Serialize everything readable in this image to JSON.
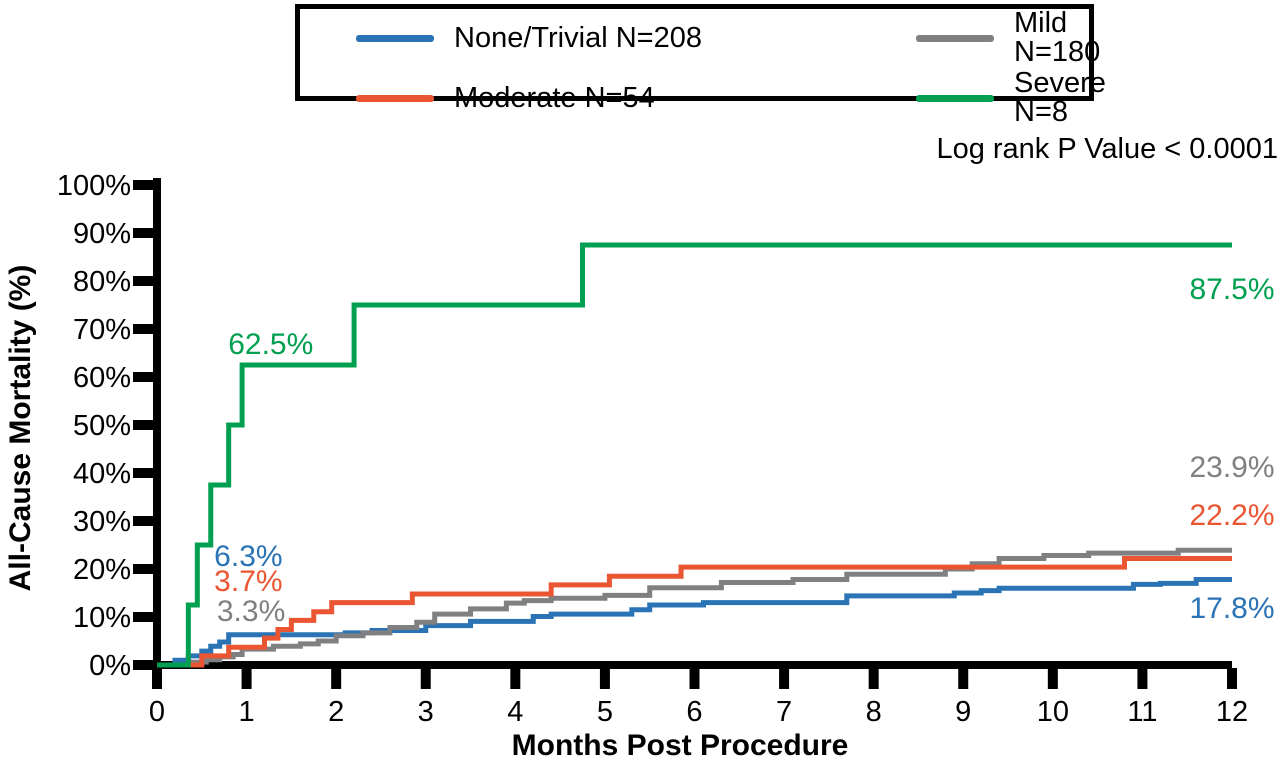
{
  "colors": {
    "blue": "#2A73B5",
    "orange": "#EA5532",
    "gray": "#808083",
    "green": "#00A050",
    "axis": "#000000"
  },
  "stats": {
    "log_rank_label": "Log rank P Value < 0.0001"
  },
  "chart_data": {
    "type": "line",
    "style": "kaplan-meier-step",
    "title": "",
    "xlabel": "Months Post Procedure",
    "ylabel": "All-Cause Mortality (%)",
    "xlim": [
      0,
      12
    ],
    "ylim": [
      0,
      100
    ],
    "x_ticks": [
      0,
      1,
      2,
      3,
      4,
      5,
      6,
      7,
      8,
      9,
      10,
      11,
      12
    ],
    "y_ticks": [
      0,
      10,
      20,
      30,
      40,
      50,
      60,
      70,
      80,
      90,
      100
    ],
    "y_tick_suffix": "%",
    "grid": false,
    "legend_position": "top-center",
    "log_rank_p_value": "< 0.0001",
    "series": [
      {
        "name": "None/Trivial N=208",
        "key": "none-trivial",
        "n": 208,
        "color": "blue",
        "value_at_1_month": 6.3,
        "value_at_12_months": 17.8,
        "points": [
          [
            0,
            0
          ],
          [
            0.2,
            1.0
          ],
          [
            0.35,
            1.9
          ],
          [
            0.5,
            2.9
          ],
          [
            0.6,
            3.9
          ],
          [
            0.7,
            4.8
          ],
          [
            0.8,
            6.3
          ],
          [
            2.1,
            6.7
          ],
          [
            2.4,
            7.2
          ],
          [
            3.0,
            8.2
          ],
          [
            3.5,
            9.1
          ],
          [
            4.2,
            10.1
          ],
          [
            4.4,
            10.6
          ],
          [
            5.3,
            11.5
          ],
          [
            5.5,
            12.5
          ],
          [
            6.1,
            13.0
          ],
          [
            7.7,
            14.4
          ],
          [
            8.9,
            15.0
          ],
          [
            9.2,
            15.5
          ],
          [
            9.4,
            16.0
          ],
          [
            10.9,
            16.8
          ],
          [
            11.2,
            17.0
          ],
          [
            11.6,
            17.8
          ],
          [
            12,
            17.8
          ]
        ]
      },
      {
        "name": "Mild N=180",
        "key": "mild",
        "n": 180,
        "color": "gray",
        "value_at_1_month": 3.3,
        "value_at_12_months": 23.9,
        "points": [
          [
            0,
            0
          ],
          [
            0.4,
            0.6
          ],
          [
            0.55,
            1.1
          ],
          [
            0.7,
            1.7
          ],
          [
            0.85,
            2.2
          ],
          [
            0.95,
            3.3
          ],
          [
            1.3,
            3.9
          ],
          [
            1.6,
            4.4
          ],
          [
            1.8,
            5.0
          ],
          [
            2.0,
            6.1
          ],
          [
            2.3,
            6.7
          ],
          [
            2.6,
            7.8
          ],
          [
            2.9,
            8.9
          ],
          [
            3.1,
            10.6
          ],
          [
            3.5,
            11.7
          ],
          [
            3.9,
            12.9
          ],
          [
            4.1,
            13.4
          ],
          [
            4.4,
            13.9
          ],
          [
            5.0,
            14.5
          ],
          [
            5.5,
            16.1
          ],
          [
            6.3,
            17.2
          ],
          [
            7.1,
            17.8
          ],
          [
            7.7,
            18.9
          ],
          [
            8.8,
            20.0
          ],
          [
            9.1,
            21.1
          ],
          [
            9.4,
            22.2
          ],
          [
            9.9,
            22.8
          ],
          [
            10.4,
            23.3
          ],
          [
            11.4,
            23.9
          ],
          [
            12,
            23.9
          ]
        ]
      },
      {
        "name": "Moderate N=54",
        "key": "moderate",
        "n": 54,
        "color": "orange",
        "value_at_1_month": 3.7,
        "value_at_12_months": 22.2,
        "points": [
          [
            0,
            0
          ],
          [
            0.5,
            1.9
          ],
          [
            0.8,
            3.7
          ],
          [
            1.2,
            5.6
          ],
          [
            1.35,
            7.4
          ],
          [
            1.5,
            9.3
          ],
          [
            1.75,
            11.1
          ],
          [
            1.95,
            13.0
          ],
          [
            2.85,
            14.8
          ],
          [
            4.4,
            16.7
          ],
          [
            5.05,
            18.5
          ],
          [
            5.85,
            20.4
          ],
          [
            10.8,
            22.2
          ],
          [
            12,
            22.2
          ]
        ]
      },
      {
        "name": "Severe N=8",
        "key": "severe",
        "n": 8,
        "color": "green",
        "value_at_1_month": 62.5,
        "value_at_12_months": 87.5,
        "points": [
          [
            0,
            0
          ],
          [
            0.35,
            12.5
          ],
          [
            0.45,
            25.0
          ],
          [
            0.6,
            37.5
          ],
          [
            0.8,
            50.0
          ],
          [
            0.95,
            62.5
          ],
          [
            2.2,
            75.0
          ],
          [
            4.75,
            87.5
          ],
          [
            12,
            87.5
          ]
        ]
      }
    ],
    "annotations": [
      {
        "text": "62.5%",
        "color": "green",
        "x": 1.27,
        "y": 66.9
      },
      {
        "text": "87.5%",
        "color": "green",
        "x": 12.0,
        "y": 78.3
      },
      {
        "text": "6.3%",
        "color": "blue",
        "x": 1.02,
        "y": 22.7
      },
      {
        "text": "3.7%",
        "color": "orange",
        "x": 1.02,
        "y": 17.5
      },
      {
        "text": "3.3%",
        "color": "gray",
        "x": 1.05,
        "y": 11.3
      },
      {
        "text": "23.9%",
        "color": "gray",
        "x": 12.0,
        "y": 41.3
      },
      {
        "text": "22.2%",
        "color": "orange",
        "x": 12.0,
        "y": 31.3
      },
      {
        "text": "17.8%",
        "color": "blue",
        "x": 12.0,
        "y": 11.9
      }
    ]
  }
}
